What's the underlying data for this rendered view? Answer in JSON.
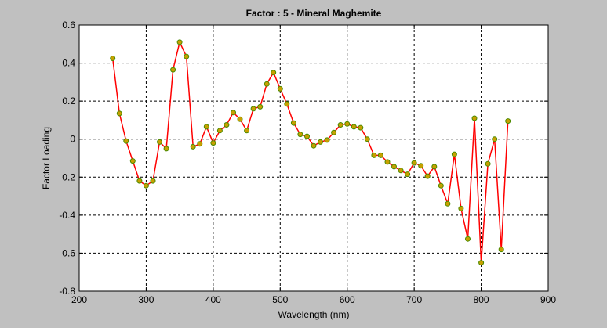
{
  "chart_data": {
    "type": "line",
    "title": "Factor : 5 - Mineral Maghemite",
    "xlabel": "Wavelength (nm)",
    "ylabel": "Factor Loading",
    "xlim": [
      200,
      900
    ],
    "ylim": [
      -0.8,
      0.6
    ],
    "xticks": [
      200,
      300,
      400,
      500,
      600,
      700,
      800,
      900
    ],
    "yticks": [
      -0.8,
      -0.6,
      -0.4,
      -0.2,
      0,
      0.2,
      0.4,
      0.6
    ],
    "xtick_labels": [
      "200",
      "300",
      "400",
      "500",
      "600",
      "700",
      "800",
      "900"
    ],
    "ytick_labels": [
      "-0.8",
      "-0.6",
      "-0.4",
      "-0.2",
      "0",
      "0.2",
      "0.4",
      "0.6"
    ],
    "grid": true,
    "line_color": "#ff0000",
    "marker_fill": "#c8a000",
    "marker_edge": "#4a8a00",
    "series": [
      {
        "x": [
          250,
          260,
          270,
          280,
          290,
          300,
          310,
          320,
          330,
          340,
          350,
          360,
          370,
          380,
          390,
          400,
          410,
          420,
          430,
          440,
          450,
          460,
          470,
          480,
          490,
          500,
          510,
          520,
          530,
          540,
          550,
          560,
          570,
          580,
          590,
          600,
          610,
          620,
          630,
          640,
          650,
          660,
          670,
          680,
          690,
          700,
          710,
          720,
          730,
          740,
          750,
          760,
          770,
          780,
          790,
          800,
          810,
          820,
          830,
          840
        ],
        "y": [
          0.425,
          0.135,
          -0.01,
          -0.115,
          -0.22,
          -0.245,
          -0.22,
          -0.015,
          -0.05,
          0.365,
          0.51,
          0.435,
          -0.04,
          -0.025,
          0.065,
          -0.02,
          0.045,
          0.075,
          0.14,
          0.105,
          0.045,
          0.16,
          0.17,
          0.29,
          0.35,
          0.265,
          0.185,
          0.085,
          0.025,
          0.015,
          -0.035,
          -0.015,
          -0.005,
          0.035,
          0.075,
          0.08,
          0.065,
          0.06,
          0.0,
          -0.085,
          -0.085,
          -0.12,
          -0.145,
          -0.165,
          -0.185,
          -0.125,
          -0.14,
          -0.195,
          -0.145,
          -0.245,
          -0.34,
          -0.08,
          -0.365,
          -0.525,
          0.11,
          -0.65,
          -0.13,
          0.0,
          -0.58,
          0.095
        ]
      }
    ]
  }
}
